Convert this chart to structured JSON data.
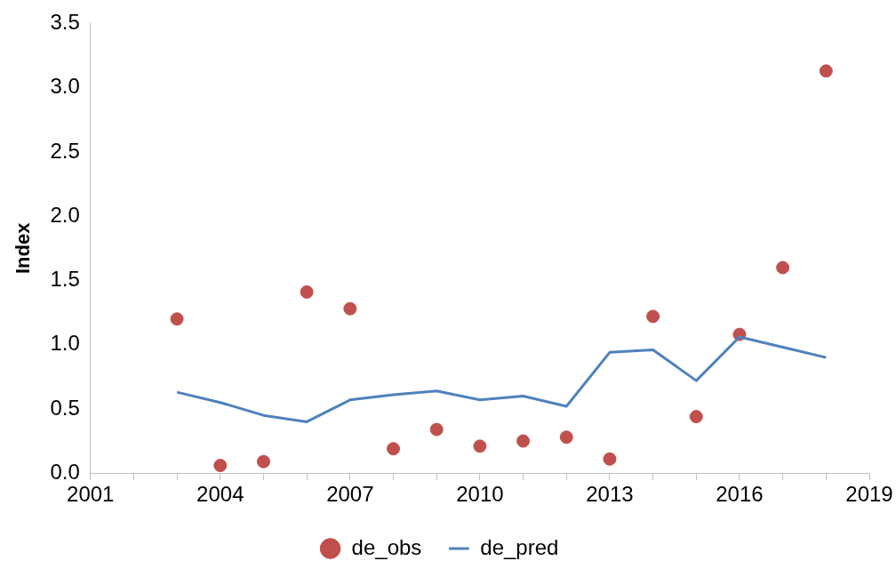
{
  "chart_data": {
    "type": "scatter",
    "ylabel": "Index",
    "xlim": [
      2001,
      2019
    ],
    "xticks": [
      2001,
      {
        "value": 2002,
        "label": null
      },
      {
        "value": 2003,
        "label": null
      },
      2004,
      {
        "value": 2005,
        "label": null
      },
      {
        "value": 2006,
        "label": null
      },
      2007,
      {
        "value": 2008,
        "label": null
      },
      {
        "value": 2009,
        "label": null
      },
      2010,
      {
        "value": 2011,
        "label": null
      },
      {
        "value": 2012,
        "label": null
      },
      2013,
      {
        "value": 2014,
        "label": null
      },
      {
        "value": 2015,
        "label": null
      },
      2016,
      {
        "value": 2017,
        "label": null
      },
      {
        "value": 2018,
        "label": null
      },
      2019
    ],
    "ylim": [
      0,
      3.5
    ],
    "yticks": [
      {
        "value": 0,
        "label": "0.0"
      },
      {
        "value": 0.5,
        "label": "0.5"
      },
      {
        "value": 1,
        "label": "1.0"
      },
      {
        "value": 1.5,
        "label": "1.5"
      },
      {
        "value": 2,
        "label": "2.0"
      },
      {
        "value": 2.5,
        "label": "2.5"
      },
      {
        "value": 3,
        "label": "3.0"
      },
      {
        "value": 3.5,
        "label": "3.5"
      }
    ],
    "grid": false,
    "legend": "bottom",
    "series": [
      {
        "name": "de_obs",
        "marker": "circle",
        "color": "#c0504d",
        "x": [
          2003,
          2004,
          2005,
          2006,
          2007,
          2008,
          2009,
          2010,
          2011,
          2012,
          2013,
          2014,
          2015,
          2016,
          2017,
          2018
        ],
        "values": [
          1.2,
          0.06,
          0.09,
          1.41,
          1.28,
          0.19,
          0.34,
          0.21,
          0.25,
          0.28,
          0.11,
          1.22,
          0.44,
          1.08,
          1.6,
          3.13
        ]
      },
      {
        "name": "de_pred",
        "type": "line",
        "marker": "none",
        "color": "#4f81bd",
        "x": [
          2003,
          2004,
          2005,
          2006,
          2007,
          2008,
          2009,
          2010,
          2011,
          2012,
          2013,
          2014,
          2015,
          2016,
          2017,
          2018
        ],
        "values": [
          0.63,
          0.55,
          0.45,
          0.4,
          0.57,
          0.61,
          0.64,
          0.57,
          0.6,
          0.52,
          0.94,
          0.96,
          0.72,
          1.06,
          0.98,
          0.9
        ]
      }
    ]
  }
}
